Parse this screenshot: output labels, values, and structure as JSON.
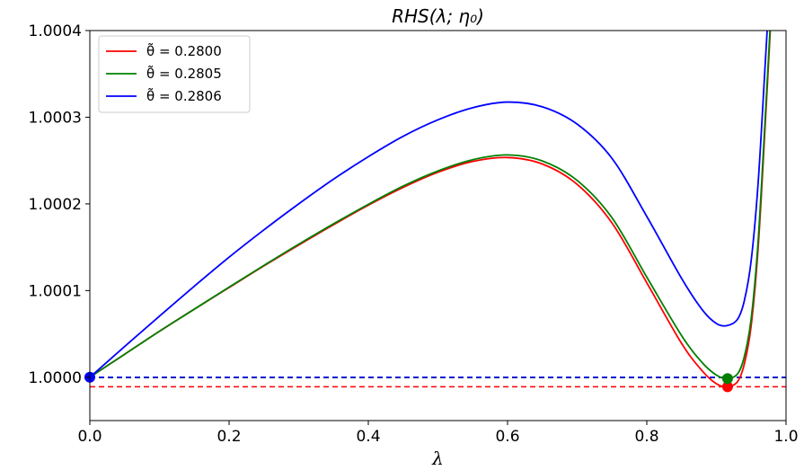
{
  "chart_data": {
    "type": "line",
    "title": "RHS(λ; η₀)",
    "xlabel": "λ",
    "ylabel": "",
    "xlim": [
      0.0,
      1.0
    ],
    "ylim": [
      0.99995,
      1.0004
    ],
    "xticks": [
      0.0,
      0.2,
      0.4,
      0.6,
      0.8,
      1.0
    ],
    "xtick_labels": [
      "0.0",
      "0.2",
      "0.4",
      "0.6",
      "0.8",
      "1.0"
    ],
    "yticks": [
      1.0,
      1.0001,
      1.0002,
      1.0003,
      1.0004
    ],
    "ytick_labels": [
      "1.0000",
      "1.0001",
      "1.0002",
      "1.0003",
      "1.0004"
    ],
    "grid": false,
    "legend_position": "top-left",
    "series": [
      {
        "name": "θ̃ = 0.2800",
        "color": "#ff0000",
        "points": [
          [
            0.0,
            1.0
          ],
          [
            0.05,
            1.0000265
          ],
          [
            0.1,
            1.000053
          ],
          [
            0.15,
            1.0000785
          ],
          [
            0.2,
            1.0001035
          ],
          [
            0.25,
            1.0001285
          ],
          [
            0.3,
            1.0001525
          ],
          [
            0.35,
            1.000176
          ],
          [
            0.4,
            1.0001985
          ],
          [
            0.45,
            1.000219
          ],
          [
            0.5,
            1.0002365
          ],
          [
            0.55,
            1.000249
          ],
          [
            0.6,
            1.0002535
          ],
          [
            0.65,
            1.000246
          ],
          [
            0.7,
            1.0002225
          ],
          [
            0.75,
            1.000178
          ],
          [
            0.8,
            1.000109
          ],
          [
            0.85,
            1.000039
          ],
          [
            0.88,
            1.000007
          ],
          [
            0.9,
            0.9999925
          ],
          [
            0.915,
            0.999989
          ],
          [
            0.93,
            0.9999945
          ],
          [
            0.94,
            1.000015
          ],
          [
            0.95,
            1.00006
          ],
          [
            0.96,
            1.00015
          ],
          [
            0.97,
            1.00029
          ],
          [
            0.98,
            1.00044
          ]
        ],
        "min_marker": [
          0.916,
          0.999989
        ],
        "hline": 0.999989
      },
      {
        "name": "θ̃ = 0.2805",
        "color": "#008000",
        "points": [
          [
            0.0,
            1.0
          ],
          [
            0.05,
            1.0000265
          ],
          [
            0.1,
            1.000053
          ],
          [
            0.15,
            1.0000785
          ],
          [
            0.2,
            1.000104
          ],
          [
            0.25,
            1.000129
          ],
          [
            0.3,
            1.0001535
          ],
          [
            0.35,
            1.000177
          ],
          [
            0.4,
            1.0001995
          ],
          [
            0.45,
            1.0002205
          ],
          [
            0.5,
            1.000238
          ],
          [
            0.55,
            1.000251
          ],
          [
            0.6,
            1.0002565
          ],
          [
            0.65,
            1.0002495
          ],
          [
            0.7,
            1.000227
          ],
          [
            0.75,
            1.000184
          ],
          [
            0.8,
            1.0001155
          ],
          [
            0.85,
            1.000048
          ],
          [
            0.88,
            1.0000165
          ],
          [
            0.9,
            1.0000025
          ],
          [
            0.915,
            0.9999985
          ],
          [
            0.93,
            1.0000035
          ],
          [
            0.94,
            1.0000235
          ],
          [
            0.95,
            1.000068
          ],
          [
            0.96,
            1.000158
          ],
          [
            0.97,
            1.000298
          ],
          [
            0.98,
            1.000445
          ]
        ],
        "min_marker": [
          0.916,
          0.9999985
        ],
        "hline": 0.9999995
      },
      {
        "name": "θ̃ = 0.2806",
        "color": "#0000ff",
        "points": [
          [
            0.0,
            1.0
          ],
          [
            0.05,
            1.0000355
          ],
          [
            0.1,
            1.0000705
          ],
          [
            0.15,
            1.000105
          ],
          [
            0.2,
            1.0001385
          ],
          [
            0.25,
            1.00017
          ],
          [
            0.3,
            1.0002
          ],
          [
            0.35,
            1.0002285
          ],
          [
            0.4,
            1.0002545
          ],
          [
            0.45,
            1.000278
          ],
          [
            0.5,
            1.000297
          ],
          [
            0.55,
            1.000311
          ],
          [
            0.6,
            1.0003175
          ],
          [
            0.65,
            1.000312
          ],
          [
            0.7,
            1.000292
          ],
          [
            0.75,
            1.0002525
          ],
          [
            0.8,
            1.0001855
          ],
          [
            0.85,
            1.000114
          ],
          [
            0.88,
            1.0000775
          ],
          [
            0.9,
            1.000062
          ],
          [
            0.915,
            1.0000595
          ],
          [
            0.93,
            1.0000665
          ],
          [
            0.94,
            1.000088
          ],
          [
            0.95,
            1.000135
          ],
          [
            0.96,
            1.000225
          ],
          [
            0.97,
            1.00036
          ],
          [
            0.98,
            1.0005
          ]
        ],
        "start_marker": [
          0.0,
          1.0
        ],
        "hline": 1.0
      }
    ]
  }
}
